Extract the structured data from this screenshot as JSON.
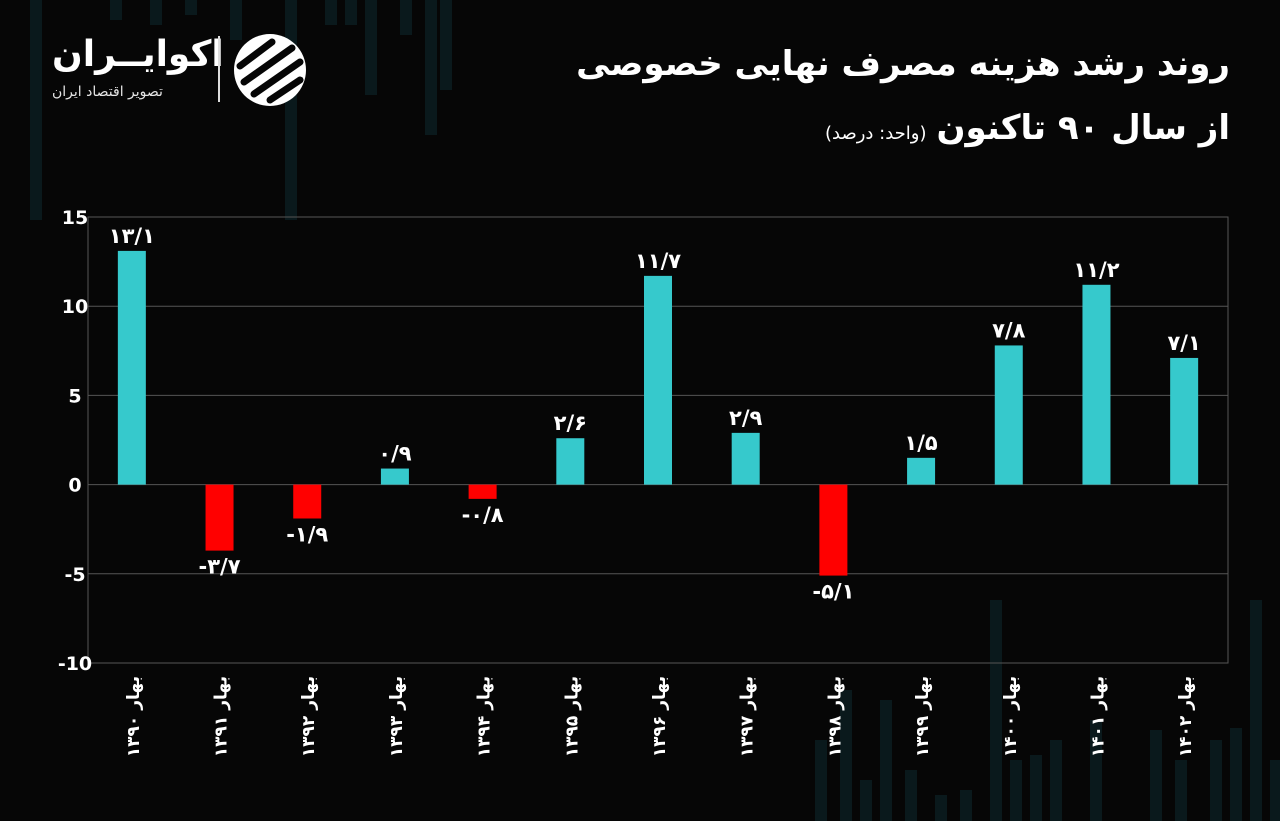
{
  "header": {
    "title_line1": "روند رشد هزینه مصرف نهایی خصوصی",
    "title_line2": "از سال ۹۰ تاکنون",
    "unit": "(واحد: درصد)"
  },
  "logo": {
    "name": "اکوایــران",
    "tagline": "تصویر اقتصاد ایران"
  },
  "colors": {
    "positive": "#36C9CC",
    "negative": "#FF0000",
    "background": "#060606",
    "grid": "#555555",
    "text": "#FFFFFF"
  },
  "chart_data": {
    "type": "bar",
    "title": "روند رشد هزینه مصرف نهایی خصوصی از سال ۹۰ تاکنون",
    "ylabel": "(واحد: درصد)",
    "xlabel": "",
    "ylim": [
      -10,
      15
    ],
    "yticks": [
      15,
      10,
      5,
      0,
      -5,
      -10
    ],
    "ytick_labels": [
      "15",
      "10",
      "5",
      "0",
      "-5",
      "-10"
    ],
    "grid": true,
    "categories": [
      "بهار ۱۳۹۰",
      "بهار ۱۳۹۱",
      "بهار ۱۳۹۲",
      "بهار ۱۳۹۳",
      "بهار ۱۳۹۴",
      "بهار ۱۳۹۵",
      "بهار ۱۳۹۶",
      "بهار ۱۳۹۷",
      "بهار ۱۳۹۸",
      "بهار ۱۳۹۹",
      "بهار ۱۴۰۰",
      "بهار ۱۴۰۱",
      "بهار ۱۴۰۲"
    ],
    "values": [
      13.1,
      -3.7,
      -1.9,
      0.9,
      -0.8,
      2.6,
      11.7,
      2.9,
      -5.1,
      1.5,
      7.8,
      11.2,
      7.1
    ],
    "value_labels": [
      "۱۳/۱",
      "-۳/۷",
      "-۱/۹",
      "۰/۹",
      "-۰/۸",
      "۲/۶",
      "۱۱/۷",
      "۲/۹",
      "-۵/۱",
      "۱/۵",
      "۷/۸",
      "۱۱/۲",
      "۷/۱"
    ]
  }
}
